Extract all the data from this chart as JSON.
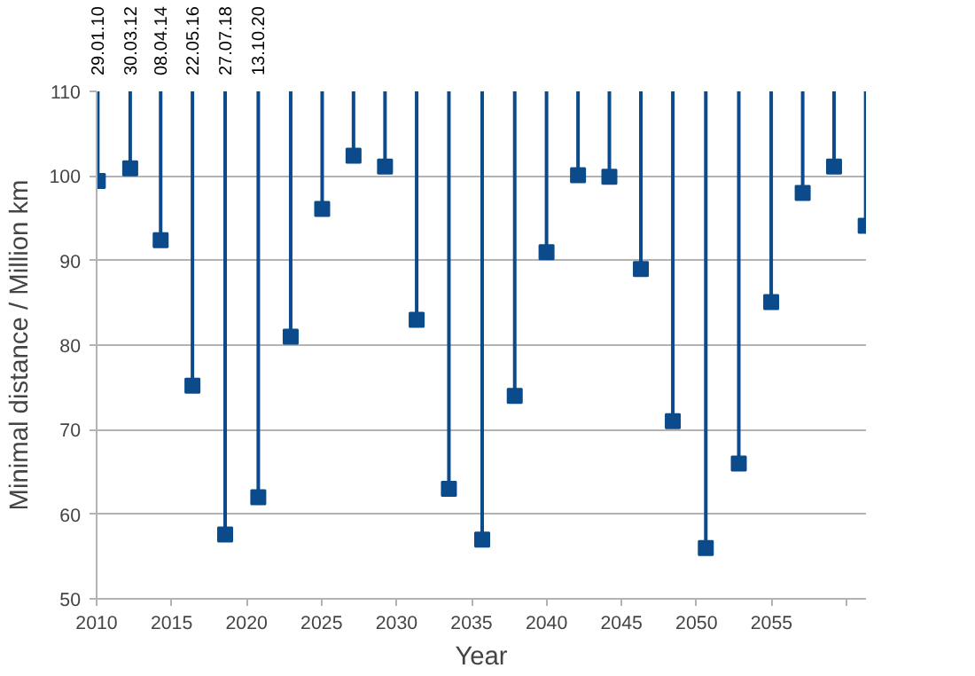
{
  "chart_data": {
    "type": "scatter",
    "xlabel": "Year",
    "ylabel": "Minimal distance / Million km",
    "x": [
      2010.08,
      2012.24,
      2014.27,
      2016.39,
      2018.57,
      2020.78,
      2022.94,
      2025.04,
      2027.13,
      2029.23,
      2031.34,
      2033.49,
      2035.71,
      2037.88,
      2040.0,
      2042.1,
      2044.19,
      2046.29,
      2048.42,
      2050.62,
      2052.82,
      2054.98,
      2057.08,
      2059.17,
      2061.28
    ],
    "series": [
      {
        "color": "#0b4a8b",
        "values": [
          99.4,
          100.9,
          92.4,
          75.2,
          57.6,
          62.0,
          81.0,
          96.1,
          102.4,
          101.1,
          83.0,
          63.0,
          57.0,
          74.0,
          91.0,
          100.1,
          99.9,
          89.0,
          71.0,
          56.0,
          66.0,
          85.1,
          98.0,
          101.1,
          94.1
        ],
        "errors": [
          [
            99.4,
            110
          ],
          [
            100.9,
            110
          ],
          [
            92.4,
            110
          ],
          [
            75.2,
            110
          ],
          [
            57.6,
            110
          ],
          [
            62.0,
            110
          ],
          [
            81.0,
            110
          ],
          [
            96.1,
            110
          ],
          [
            102.4,
            110
          ],
          [
            101.1,
            110
          ],
          [
            83.0,
            110
          ],
          [
            63.0,
            110
          ],
          [
            57.0,
            110
          ],
          [
            74.0,
            110
          ],
          [
            91.0,
            110
          ],
          [
            100.1,
            110
          ],
          [
            99.9,
            110
          ],
          [
            89.0,
            110
          ],
          [
            71.0,
            110
          ],
          [
            56.0,
            110
          ],
          [
            66.0,
            110
          ],
          [
            85.1,
            110
          ],
          [
            98.0,
            110
          ],
          [
            101.1,
            110
          ],
          [
            94.1,
            110
          ]
        ]
      }
    ],
    "xlim": [
      2010,
      2061.3
    ],
    "ylim": [
      50,
      110
    ],
    "xticks": [
      2010,
      2015,
      2020,
      2025,
      2030,
      2035,
      2040,
      2045,
      2050,
      2055,
      {
        "value": 2060,
        "label": null
      }
    ],
    "yticks": [
      50,
      60,
      70,
      80,
      90,
      100,
      110
    ],
    "grid": "y",
    "marker": "square",
    "annotations": [
      {
        "text": "29.01.10",
        "x": 2010.08,
        "y": 110
      },
      {
        "text": "30.03.12",
        "x": 2012.24,
        "y": 110
      },
      {
        "text": "08.04.14",
        "x": 2014.27,
        "y": 110
      },
      {
        "text": "22.05.16",
        "x": 2016.39,
        "y": 110
      },
      {
        "text": "27.07.18",
        "x": 2018.57,
        "y": 110
      },
      {
        "text": "13.10.20",
        "x": 2020.78,
        "y": 110
      }
    ]
  }
}
